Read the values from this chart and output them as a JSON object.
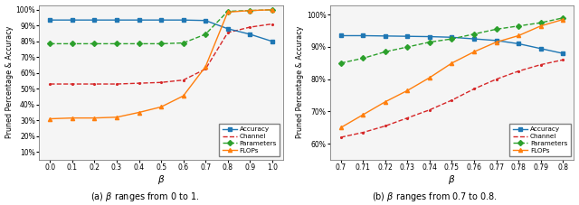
{
  "left": {
    "beta": [
      0.0,
      0.1,
      0.2,
      0.3,
      0.4,
      0.5,
      0.6,
      0.7,
      0.8,
      0.9,
      1.0
    ],
    "accuracy": [
      93.5,
      93.5,
      93.5,
      93.5,
      93.5,
      93.5,
      93.5,
      93.2,
      88.0,
      84.5,
      80.0
    ],
    "channel": [
      53.0,
      53.0,
      53.0,
      53.0,
      53.5,
      54.0,
      55.5,
      62.5,
      85.5,
      89.0,
      91.0
    ],
    "parameters": [
      78.5,
      78.5,
      78.5,
      78.5,
      78.5,
      78.5,
      79.0,
      84.5,
      99.0,
      99.5,
      100.0
    ],
    "flops": [
      31.0,
      31.5,
      31.5,
      32.0,
      35.0,
      38.5,
      45.5,
      64.0,
      98.5,
      99.5,
      100.0
    ],
    "xlabel": "$\\beta$",
    "ylabel": "Pruned Percentage & Accuracy",
    "caption": "(a) $\\beta$ ranges from 0 to 1.",
    "xlim": [
      -0.05,
      1.05
    ],
    "ylim": [
      5,
      103
    ],
    "xticks": [
      0.0,
      0.1,
      0.2,
      0.3,
      0.4,
      0.5,
      0.6,
      0.7,
      0.8,
      0.9,
      1.0
    ],
    "xticklabels": [
      "0.0",
      "0.1",
      "0.2",
      "0.3",
      "0.4",
      "0.5",
      "0.6",
      "0.7",
      "0.8",
      "0.9",
      "1.0"
    ],
    "yticks": [
      10,
      20,
      30,
      40,
      50,
      60,
      70,
      80,
      90,
      100
    ],
    "legend_loc": "lower right"
  },
  "right": {
    "beta": [
      0.7,
      0.71,
      0.72,
      0.73,
      0.74,
      0.75,
      0.76,
      0.77,
      0.78,
      0.79,
      0.8
    ],
    "accuracy": [
      93.5,
      93.5,
      93.4,
      93.3,
      93.2,
      93.0,
      92.5,
      92.0,
      91.0,
      89.5,
      88.0
    ],
    "channel": [
      62.0,
      63.5,
      65.5,
      68.0,
      70.5,
      73.5,
      77.0,
      80.0,
      82.5,
      84.5,
      86.0
    ],
    "parameters": [
      85.0,
      86.5,
      88.5,
      90.0,
      91.5,
      92.5,
      94.0,
      95.5,
      96.5,
      97.5,
      99.0
    ],
    "flops": [
      65.0,
      69.0,
      73.0,
      76.5,
      80.5,
      85.0,
      88.5,
      91.5,
      93.5,
      96.5,
      98.5
    ],
    "xlabel": "$\\beta$",
    "ylabel": "Pruned Percentage & Accuracy",
    "caption": "(b) $\\beta$ ranges from 0.7 to 0.8.",
    "xlim": [
      0.695,
      0.805
    ],
    "ylim": [
      55,
      103
    ],
    "xticks": [
      0.7,
      0.71,
      0.72,
      0.73,
      0.74,
      0.75,
      0.76,
      0.77,
      0.78,
      0.79,
      0.8
    ],
    "xticklabels": [
      "0.7",
      "0.71",
      "0.72",
      "0.73",
      "0.74",
      "0.75",
      "0.76",
      "0.77",
      "0.78",
      "0.79",
      "0.8"
    ],
    "yticks": [
      60,
      70,
      80,
      90,
      100
    ],
    "legend_loc": "lower right"
  },
  "accuracy_color": "#1f77b4",
  "channel_color": "#d62728",
  "parameters_color": "#2ca02c",
  "flops_color": "#ff7f0e",
  "legend_labels": [
    "Accuracy",
    "Channel",
    "Parameters",
    "FLOPs"
  ],
  "bg_color": "#ffffff",
  "face_color": "#f5f5f5"
}
